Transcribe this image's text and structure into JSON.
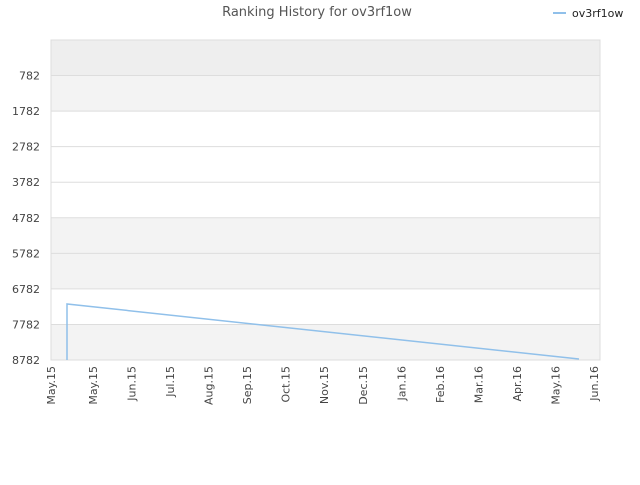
{
  "chart_data": {
    "type": "line",
    "title": "Ranking History for ov3rf1ow",
    "xlabel": "",
    "ylabel": "",
    "y_inverted": true,
    "ylim": [
      -218,
      8782
    ],
    "y_ticks": [
      "782",
      "1782",
      "2782",
      "3782",
      "4782",
      "5782",
      "6782",
      "7782",
      "8782"
    ],
    "x_ticks": [
      "May.15",
      "May.15",
      "Jun.15",
      "Jul.15",
      "Aug.15",
      "Sep.15",
      "Oct.15",
      "Nov.15",
      "Dec.15",
      "Jan.16",
      "Feb.16",
      "Mar.16",
      "Apr.16",
      "May.16",
      "Jun.16"
    ],
    "grid": true,
    "legend": "top-right",
    "series": [
      {
        "name": "ov3rf1ow",
        "color": "#90c0ea",
        "points": [
          {
            "x": "2015-05-08",
            "y": 8782
          },
          {
            "x": "2015-05-08",
            "y": 7300
          },
          {
            "x": "2016-05-24",
            "y": 8782
          }
        ]
      }
    ],
    "band_colors": [
      "#eeeeee",
      "#f3f3f3",
      "#ffffff"
    ],
    "grid_color": "#dddddd"
  }
}
